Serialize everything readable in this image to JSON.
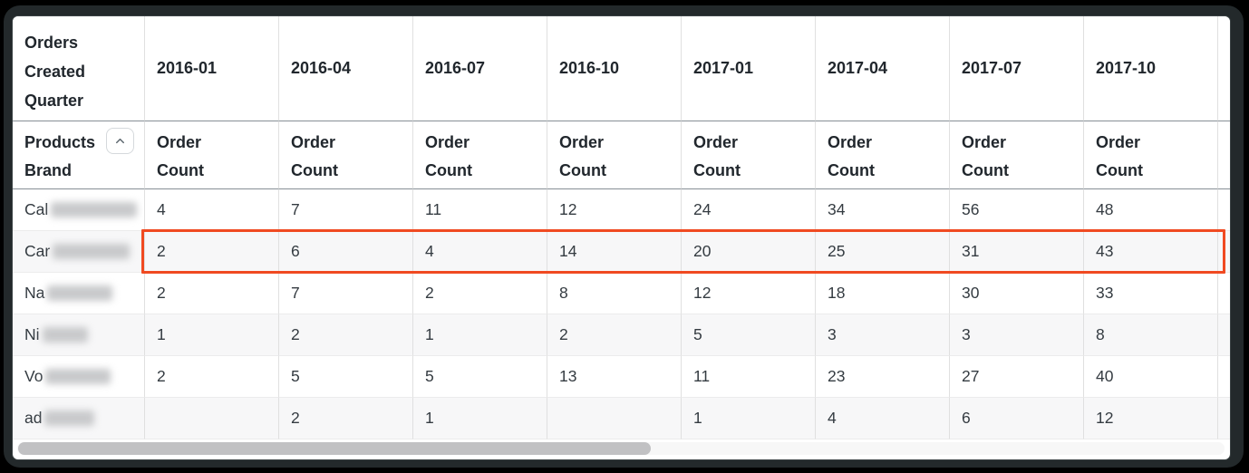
{
  "colors": {
    "highlight_border": "#F04A21",
    "header_text": "#21272D",
    "cell_text": "#343B41",
    "grid_line": "#E0E0E0",
    "header_rule": "#878F96",
    "alt_row_bg": "#F7F7F8",
    "scrollbar_thumb": "#C1C1C3"
  },
  "table": {
    "corner_header": "Orders Created Quarter",
    "row_dimension_label": "Products Brand",
    "sort_icon": "chevron-up-icon",
    "measure_label": "Order Count",
    "quarters": [
      "2016-01",
      "2016-04",
      "2016-07",
      "2016-10",
      "2017-01",
      "2017-04",
      "2017-07",
      "2017-10"
    ],
    "rows": [
      {
        "brand_prefix": "Cal",
        "brand_redacted": true,
        "blur_width": 95,
        "highlighted": false,
        "values": [
          "4",
          "7",
          "11",
          "12",
          "24",
          "34",
          "56",
          "48"
        ]
      },
      {
        "brand_prefix": "Car",
        "brand_redacted": true,
        "blur_width": 85,
        "highlighted": true,
        "values": [
          "2",
          "6",
          "4",
          "14",
          "20",
          "25",
          "31",
          "43"
        ]
      },
      {
        "brand_prefix": "Na",
        "brand_redacted": true,
        "blur_width": 72,
        "highlighted": false,
        "values": [
          "2",
          "7",
          "2",
          "8",
          "12",
          "18",
          "30",
          "33"
        ]
      },
      {
        "brand_prefix": "Ni",
        "brand_redacted": true,
        "blur_width": 50,
        "highlighted": false,
        "values": [
          "1",
          "2",
          "1",
          "2",
          "5",
          "3",
          "3",
          "8"
        ]
      },
      {
        "brand_prefix": "Vo",
        "brand_redacted": true,
        "blur_width": 72,
        "highlighted": false,
        "values": [
          "2",
          "5",
          "5",
          "13",
          "11",
          "23",
          "27",
          "40"
        ]
      },
      {
        "brand_prefix": "ad",
        "brand_redacted": true,
        "blur_width": 55,
        "highlighted": false,
        "values": [
          "",
          "2",
          "1",
          "",
          "1",
          "4",
          "6",
          "12"
        ]
      }
    ]
  },
  "scrollbar": {
    "orientation": "horizontal",
    "thumb_side": "left"
  }
}
